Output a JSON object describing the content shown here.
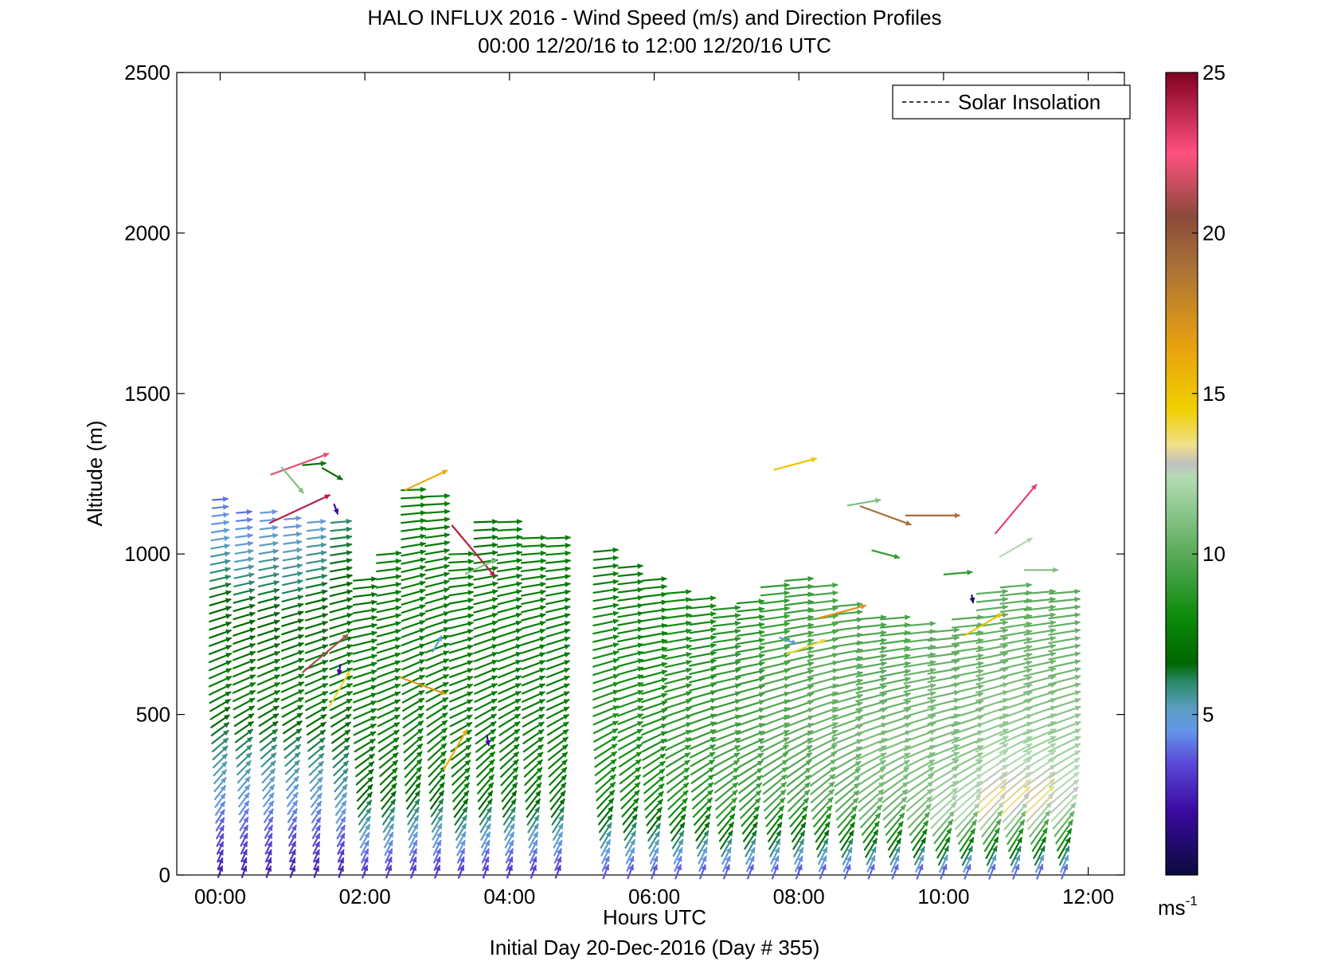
{
  "chart_data": {
    "type": "quiver",
    "title": "HALO INFLUX 2016 - Wind Speed (m/s) and Direction Profiles",
    "subtitle": "00:00 12/20/16 to 12:00 12/20/16  UTC",
    "xlabel": "Hours UTC",
    "ylabel": "Altitude (m)",
    "footer": "Initial Day 20-Dec-2016 (Day # 355)",
    "xlim": [
      -0.6,
      12.5
    ],
    "ylim": [
      0,
      2500
    ],
    "x_ticks": [
      {
        "value": 0,
        "label": "00:00"
      },
      {
        "value": 2,
        "label": "02:00"
      },
      {
        "value": 4,
        "label": "04:00"
      },
      {
        "value": 6,
        "label": "06:00"
      },
      {
        "value": 8,
        "label": "08:00"
      },
      {
        "value": 10,
        "label": "10:00"
      },
      {
        "value": 12,
        "label": "12:00"
      }
    ],
    "y_ticks": [
      {
        "value": 0,
        "label": "0"
      },
      {
        "value": 500,
        "label": "500"
      },
      {
        "value": 1000,
        "label": "1000"
      },
      {
        "value": 1500,
        "label": "1500"
      },
      {
        "value": 2000,
        "label": "2000"
      },
      {
        "value": 2500,
        "label": "2500"
      }
    ],
    "legend": {
      "label": "Solar Insolation",
      "style": "dashed",
      "placement": "top-right"
    },
    "colorbar": {
      "min": 0,
      "max": 25,
      "ticks": [
        {
          "value": 5,
          "label": "5"
        },
        {
          "value": 10,
          "label": "10"
        },
        {
          "value": 15,
          "label": "15"
        },
        {
          "value": 20,
          "label": "20"
        },
        {
          "value": 25,
          "label": "25"
        }
      ],
      "unit_label": "ms",
      "unit_exponent": "-1",
      "stops": [
        {
          "v": 0,
          "color": "#0a0a3c"
        },
        {
          "v": 2,
          "color": "#3a0aa0"
        },
        {
          "v": 3.5,
          "color": "#5a4ad8"
        },
        {
          "v": 4.5,
          "color": "#6496e8"
        },
        {
          "v": 5.2,
          "color": "#5a9ec0"
        },
        {
          "v": 6,
          "color": "#2a8a6a"
        },
        {
          "v": 6.6,
          "color": "#006600"
        },
        {
          "v": 8,
          "color": "#0a8a0a"
        },
        {
          "v": 10,
          "color": "#5aaa5a"
        },
        {
          "v": 12.4,
          "color": "#b4dcb4"
        },
        {
          "v": 12.8,
          "color": "#c0c0c0"
        },
        {
          "v": 13.4,
          "color": "#f0e08a"
        },
        {
          "v": 14.5,
          "color": "#f0d000"
        },
        {
          "v": 16.5,
          "color": "#e8a010"
        },
        {
          "v": 19,
          "color": "#a87038"
        },
        {
          "v": 20.5,
          "color": "#8a4a3a"
        },
        {
          "v": 22.5,
          "color": "#ff5080"
        },
        {
          "v": 25,
          "color": "#800020"
        }
      ]
    },
    "profiles": [
      {
        "t": 0.0,
        "h": 1170,
        "speed": [
          2.5,
          5.0,
          7.5,
          6.5,
          4.0
        ],
        "dir": [
          200,
          220,
          245,
          255,
          265
        ]
      },
      {
        "t": 0.33,
        "h": 1130,
        "speed": [
          2.5,
          5.0,
          7.5,
          6.5,
          4.0
        ],
        "dir": [
          200,
          220,
          245,
          255,
          265
        ]
      },
      {
        "t": 0.67,
        "h": 1130,
        "speed": [
          2.5,
          5.0,
          7.5,
          6.5,
          4.5
        ],
        "dir": [
          200,
          220,
          245,
          255,
          265
        ]
      },
      {
        "t": 1.0,
        "h": 1110,
        "speed": [
          2.5,
          5.0,
          7.5,
          6.5,
          4.5
        ],
        "dir": [
          200,
          220,
          245,
          255,
          265
        ]
      },
      {
        "t": 1.33,
        "h": 1100,
        "speed": [
          2.5,
          5.0,
          7.5,
          6.8,
          5.0
        ],
        "dir": [
          200,
          220,
          245,
          255,
          265
        ]
      },
      {
        "t": 1.67,
        "h": 1100,
        "speed": [
          2.5,
          5.5,
          7.5,
          7.0,
          6.0
        ],
        "dir": [
          200,
          220,
          245,
          255,
          265
        ]
      },
      {
        "t": 2.0,
        "h": 920,
        "speed": [
          3.0,
          6.5,
          7.5,
          7.5,
          7.0
        ],
        "dir": [
          200,
          220,
          245,
          255,
          265
        ]
      },
      {
        "t": 2.33,
        "h": 1000,
        "speed": [
          3.0,
          7.0,
          7.5,
          7.5,
          7.5
        ],
        "dir": [
          200,
          220,
          245,
          255,
          265
        ]
      },
      {
        "t": 2.67,
        "h": 1200,
        "speed": [
          3.0,
          7.5,
          7.5,
          7.5,
          7.5
        ],
        "dir": [
          200,
          220,
          245,
          255,
          268
        ]
      },
      {
        "t": 3.0,
        "h": 1180,
        "speed": [
          3.0,
          7.5,
          7.5,
          7.5,
          7.5
        ],
        "dir": [
          200,
          220,
          245,
          255,
          268
        ]
      },
      {
        "t": 3.33,
        "h": 1000,
        "speed": [
          3.0,
          7.5,
          7.5,
          7.5,
          7.5
        ],
        "dir": [
          200,
          220,
          245,
          255,
          268
        ]
      },
      {
        "t": 3.67,
        "h": 1100,
        "speed": [
          3.0,
          7.5,
          7.5,
          7.5,
          7.0
        ],
        "dir": [
          200,
          220,
          245,
          255,
          268
        ]
      },
      {
        "t": 4.0,
        "h": 1100,
        "speed": [
          3.0,
          7.5,
          7.5,
          7.5,
          7.5
        ],
        "dir": [
          200,
          220,
          245,
          255,
          268
        ]
      },
      {
        "t": 4.33,
        "h": 1050,
        "speed": [
          3.0,
          7.5,
          7.5,
          7.5,
          7.5
        ],
        "dir": [
          200,
          220,
          245,
          255,
          268
        ]
      },
      {
        "t": 4.67,
        "h": 1050,
        "speed": [
          3.0,
          7.5,
          7.5,
          7.5,
          7.5
        ],
        "dir": [
          200,
          220,
          245,
          255,
          268
        ]
      },
      {
        "t": 5.33,
        "h": 1010,
        "speed": [
          3.5,
          8.0,
          8.5,
          8.0,
          7.5
        ],
        "dir": [
          200,
          225,
          248,
          258,
          265
        ]
      },
      {
        "t": 5.67,
        "h": 960,
        "speed": [
          3.5,
          8.0,
          8.5,
          8.0,
          7.5
        ],
        "dir": [
          200,
          225,
          248,
          258,
          265
        ]
      },
      {
        "t": 6.0,
        "h": 920,
        "speed": [
          3.5,
          8.0,
          8.5,
          8.0,
          7.5
        ],
        "dir": [
          200,
          225,
          248,
          258,
          265
        ]
      },
      {
        "t": 6.33,
        "h": 880,
        "speed": [
          3.5,
          8.5,
          9.0,
          8.5,
          8.0
        ],
        "dir": [
          200,
          225,
          248,
          258,
          265
        ]
      },
      {
        "t": 6.67,
        "h": 860,
        "speed": [
          3.5,
          8.5,
          9.0,
          8.5,
          8.0
        ],
        "dir": [
          200,
          225,
          248,
          258,
          265
        ]
      },
      {
        "t": 7.0,
        "h": 830,
        "speed": [
          3.5,
          9.0,
          9.5,
          9.0,
          8.5
        ],
        "dir": [
          200,
          225,
          248,
          258,
          265
        ]
      },
      {
        "t": 7.33,
        "h": 850,
        "speed": [
          3.5,
          9.0,
          9.5,
          9.0,
          8.5
        ],
        "dir": [
          200,
          225,
          248,
          258,
          265
        ]
      },
      {
        "t": 7.67,
        "h": 900,
        "speed": [
          3.5,
          9.5,
          10.0,
          9.5,
          9.0
        ],
        "dir": [
          200,
          225,
          248,
          258,
          265
        ]
      },
      {
        "t": 8.0,
        "h": 920,
        "speed": [
          3.5,
          9.5,
          10.0,
          9.5,
          9.0
        ],
        "dir": [
          200,
          225,
          248,
          258,
          265
        ]
      },
      {
        "t": 8.33,
        "h": 900,
        "speed": [
          3.5,
          10.0,
          10.5,
          10.0,
          9.5
        ],
        "dir": [
          200,
          225,
          248,
          258,
          265
        ]
      },
      {
        "t": 8.67,
        "h": 840,
        "speed": [
          3.5,
          10.0,
          10.5,
          10.0,
          9.5
        ],
        "dir": [
          200,
          225,
          248,
          258,
          265
        ]
      },
      {
        "t": 9.0,
        "h": 800,
        "speed": [
          3.5,
          10.5,
          11.0,
          10.0,
          9.5
        ],
        "dir": [
          200,
          225,
          248,
          258,
          265
        ]
      },
      {
        "t": 9.33,
        "h": 800,
        "speed": [
          3.5,
          10.5,
          11.0,
          10.0,
          9.5
        ],
        "dir": [
          200,
          225,
          248,
          258,
          265
        ]
      },
      {
        "t": 9.67,
        "h": 780,
        "speed": [
          3.5,
          11.0,
          11.0,
          10.5,
          10.0
        ],
        "dir": [
          200,
          225,
          248,
          258,
          265
        ]
      },
      {
        "t": 10.0,
        "h": 760,
        "speed": [
          3.5,
          12.0,
          11.0,
          10.5,
          10.0
        ],
        "dir": [
          200,
          225,
          248,
          258,
          265
        ]
      },
      {
        "t": 10.33,
        "h": 800,
        "speed": [
          3.5,
          12.5,
          11.0,
          10.5,
          10.0
        ],
        "dir": [
          200,
          225,
          248,
          258,
          265
        ]
      },
      {
        "t": 10.67,
        "h": 880,
        "speed": [
          3.5,
          13.5,
          11.5,
          10.5,
          10.0
        ],
        "dir": [
          200,
          225,
          248,
          258,
          265
        ]
      },
      {
        "t": 11.0,
        "h": 900,
        "speed": [
          3.5,
          13.5,
          11.5,
          10.5,
          10.0
        ],
        "dir": [
          200,
          225,
          248,
          258,
          265
        ]
      },
      {
        "t": 11.33,
        "h": 880,
        "speed": [
          3.5,
          13.5,
          11.5,
          10.5,
          10.0
        ],
        "dir": [
          200,
          225,
          248,
          258,
          265
        ]
      },
      {
        "t": 11.67,
        "h": 880,
        "speed": [
          3.5,
          12.8,
          11.5,
          10.5,
          10.0
        ],
        "dir": [
          200,
          225,
          248,
          258,
          265
        ]
      }
    ],
    "scattered_vectors": [
      {
        "t": 1.1,
        "z": 1280,
        "speed": 22,
        "dir": 250
      },
      {
        "t": 1.1,
        "z": 1140,
        "speed": 24,
        "dir": 245
      },
      {
        "t": 1.3,
        "z": 1280,
        "speed": 7,
        "dir": 265
      },
      {
        "t": 1.55,
        "z": 1250,
        "speed": 7,
        "dir": 300
      },
      {
        "t": 1.0,
        "z": 1230,
        "speed": 11,
        "dir": 320
      },
      {
        "t": 1.6,
        "z": 1140,
        "speed": 2,
        "dir": 340
      },
      {
        "t": 2.85,
        "z": 1230,
        "speed": 16,
        "dir": 245
      },
      {
        "t": 3.5,
        "z": 1010,
        "speed": 24,
        "dir": 320
      },
      {
        "t": 7.95,
        "z": 1280,
        "speed": 15,
        "dir": 255
      },
      {
        "t": 8.6,
        "z": 820,
        "speed": 17,
        "dir": 255
      },
      {
        "t": 8.1,
        "z": 710,
        "speed": 14,
        "dir": 250
      },
      {
        "t": 7.85,
        "z": 730,
        "speed": 5,
        "dir": 290
      },
      {
        "t": 8.9,
        "z": 1160,
        "speed": 11,
        "dir": 260
      },
      {
        "t": 9.2,
        "z": 1120,
        "speed": 19,
        "dir": 290
      },
      {
        "t": 9.85,
        "z": 1120,
        "speed": 19,
        "dir": 270
      },
      {
        "t": 9.2,
        "z": 1000,
        "speed": 9,
        "dir": 285
      },
      {
        "t": 10.4,
        "z": 860,
        "speed": 1,
        "dir": 350
      },
      {
        "t": 10.55,
        "z": 780,
        "speed": 15,
        "dir": 240
      },
      {
        "t": 11.0,
        "z": 1140,
        "speed": 23,
        "dir": 220
      },
      {
        "t": 11.0,
        "z": 1020,
        "speed": 12.5,
        "dir": 240
      },
      {
        "t": 10.2,
        "z": 940,
        "speed": 9,
        "dir": 265
      },
      {
        "t": 11.35,
        "z": 950,
        "speed": 11,
        "dir": 270
      },
      {
        "t": 2.8,
        "z": 590,
        "speed": 17,
        "dir": 290
      },
      {
        "t": 3.25,
        "z": 390,
        "speed": 16,
        "dir": 210
      },
      {
        "t": 3.7,
        "z": 420,
        "speed": 2,
        "dir": 350
      },
      {
        "t": 1.65,
        "z": 640,
        "speed": 2,
        "dir": 10
      },
      {
        "t": 1.45,
        "z": 690,
        "speed": 21,
        "dir": 230
      },
      {
        "t": 1.65,
        "z": 580,
        "speed": 14,
        "dir": 210
      },
      {
        "t": 3.0,
        "z": 720,
        "speed": 5,
        "dir": 210
      },
      {
        "t": 3.6,
        "z": 960,
        "speed": 11,
        "dir": 245
      }
    ]
  }
}
